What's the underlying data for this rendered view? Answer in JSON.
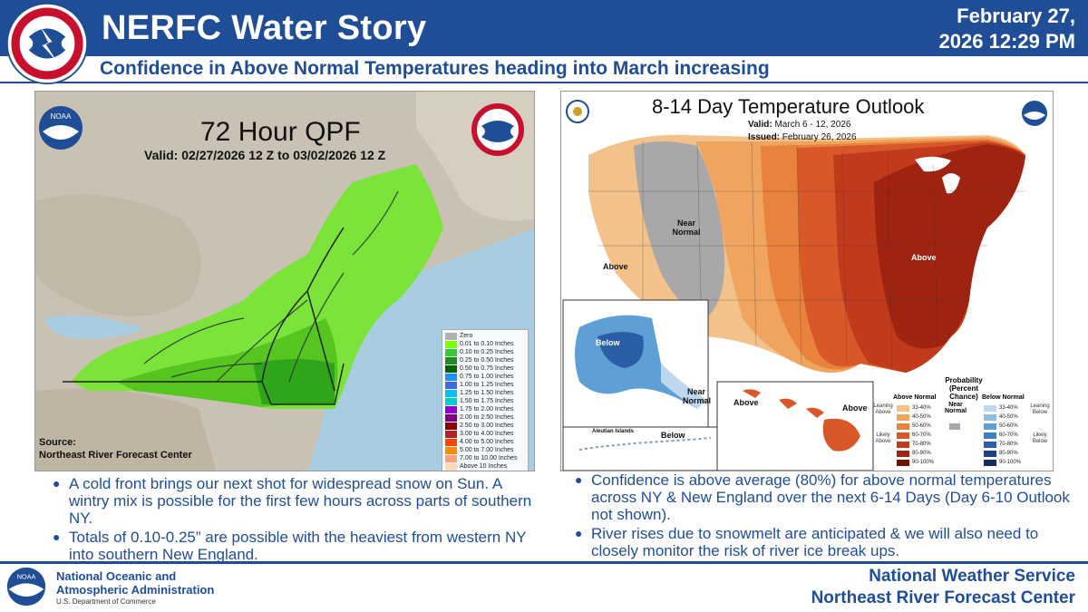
{
  "header": {
    "title": "NERFC Water Story",
    "date_line1": "February 27,",
    "date_line2": "2026 12:29 PM",
    "subtitle": "Confidence in Above Normal Temperatures heading into March increasing"
  },
  "left_panel": {
    "title": "72 Hour QPF",
    "valid": "Valid: 02/27/2026 12 Z to 03/02/2026 12 Z",
    "source_line1": "Source:",
    "source_line2": "Northeast River Forecast Center",
    "legend": [
      {
        "label": "Zero",
        "color": "#b0b0b0"
      },
      {
        "label": "0.01 to 0.10 Inches",
        "color": "#7cfc00"
      },
      {
        "label": "0.10 to 0.25 Inches",
        "color": "#32cd32"
      },
      {
        "label": "0.25 to 0.50 Inches",
        "color": "#228b22"
      },
      {
        "label": "0.50 to 0.75 Inches",
        "color": "#006400"
      },
      {
        "label": "0.75 to 1.00 Inches",
        "color": "#1e90ff"
      },
      {
        "label": "1.00 to 1.25 Inches",
        "color": "#4169e1"
      },
      {
        "label": "1.25 to 1.50 Inches",
        "color": "#00bfff"
      },
      {
        "label": "1.50 to 1.75 Inches",
        "color": "#00ced1"
      },
      {
        "label": "1.75 to 2.00 Inches",
        "color": "#9400d3"
      },
      {
        "label": "2.00 to 2.50 Inches",
        "color": "#800080"
      },
      {
        "label": "2.50 to 3.00 Inches",
        "color": "#8b0000"
      },
      {
        "label": "3.00 to 4.00 Inches",
        "color": "#b22222"
      },
      {
        "label": "4.00 to 5.00 Inches",
        "color": "#ff4500"
      },
      {
        "label": "5.00 to 7.00 Inches",
        "color": "#ff8c00"
      },
      {
        "label": "7.00 to 10.00 Inches",
        "color": "#ffa07a"
      },
      {
        "label": "Above 10 Inches",
        "color": "#ffdab9"
      }
    ]
  },
  "right_panel": {
    "title": "8-14 Day Temperature Outlook",
    "valid_label": "Valid:",
    "valid_value": "March 6 - 12, 2026",
    "issued_label": "Issued:",
    "issued_value": "February 26, 2026",
    "labels": {
      "near_normal": "Near Normal",
      "above_west": "Above",
      "above_east": "Above",
      "below_ak": "Below",
      "near_normal_ak": "Near Normal",
      "aleutian": "Aleutian Islands",
      "below_aleutian": "Below",
      "above_hi_w": "Above",
      "above_hi_e": "Above"
    },
    "prob_legend": {
      "title": "Probability (Percent Chance)",
      "above_head": "Above Normal",
      "near_head": "Near Normal",
      "below_head": "Below Normal",
      "leaning_above": "Leaning Above",
      "likely_above": "Likely Above",
      "leaning_below": "Leaning Below",
      "likely_below": "Likely Below",
      "above": [
        {
          "label": "33-40%",
          "color": "#f3c28a"
        },
        {
          "label": "40-50%",
          "color": "#efa45f"
        },
        {
          "label": "50-60%",
          "color": "#e8823d"
        },
        {
          "label": "60-70%",
          "color": "#d9582a"
        },
        {
          "label": "70-80%",
          "color": "#c23a1c"
        },
        {
          "label": "80-90%",
          "color": "#9e2411"
        },
        {
          "label": "90-100%",
          "color": "#6e1208"
        }
      ],
      "below": [
        {
          "label": "33-40%",
          "color": "#bcd7ee"
        },
        {
          "label": "40-50%",
          "color": "#8fbde4"
        },
        {
          "label": "50-60%",
          "color": "#5e9fd6"
        },
        {
          "label": "60-70%",
          "color": "#3b7fc4"
        },
        {
          "label": "70-80%",
          "color": "#2a5fa6"
        },
        {
          "label": "80-90%",
          "color": "#1f3f86"
        },
        {
          "label": "90-100%",
          "color": "#152a60"
        }
      ]
    }
  },
  "bullets_left": [
    "A cold front brings our next shot for widespread snow on Sun. A wintry mix is possible for the first few hours across parts of southern NY.",
    "Totals of 0.10-0.25” are possible with the heaviest from western NY into southern New England."
  ],
  "bullets_right": [
    "Confidence is above average (80%) for above normal temperatures across NY & New England over the next 6-14 Days (Day 6-10 Outlook not shown).",
    "River rises due to snowmelt are anticipated & we will also need to closely monitor the risk of river ice break ups."
  ],
  "footer": {
    "org_line1": "National Oceanic and",
    "org_line2": "Atmospheric Administration",
    "dept": "U.S. Department of Commerce",
    "right_line1": "National Weather Service",
    "right_line2": "Northeast River Forecast Center"
  },
  "colors": {
    "brand_blue": "#1f4e96"
  }
}
